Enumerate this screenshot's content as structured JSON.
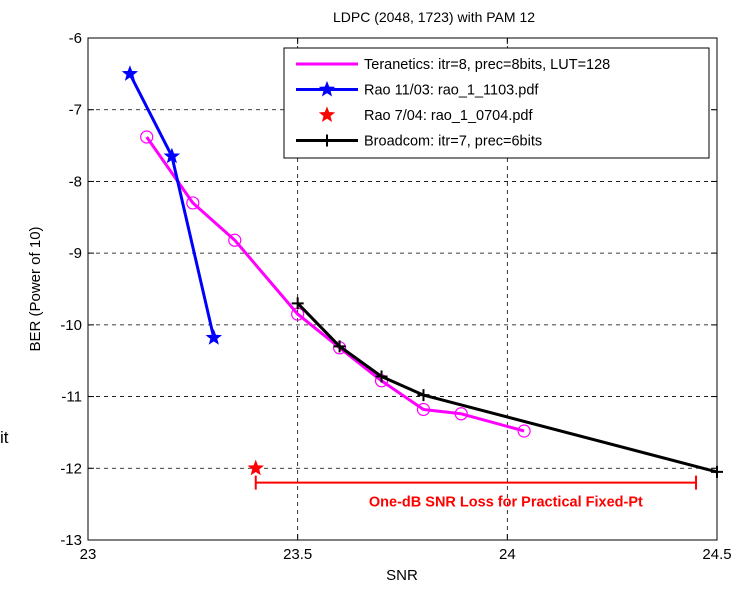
{
  "fragments": {
    "left_text": "it"
  },
  "chart_data": {
    "type": "line",
    "title": "LDPC (2048, 1723) with PAM 12",
    "xlabel": "SNR",
    "ylabel": "BER (Power of 10)",
    "xlim": [
      23,
      24.5
    ],
    "ylim": [
      -13,
      -6
    ],
    "x_ticks": [
      "23",
      "23.5",
      "24",
      "24.5"
    ],
    "y_ticks": [
      "-6",
      "-7",
      "-8",
      "-9",
      "-10",
      "-11",
      "-12",
      "-13"
    ],
    "grid": true,
    "legend_position": "top-right",
    "series": [
      {
        "name": "Teranetics: itr=8, prec=8bits, LUT=128",
        "color": "#ff00ff",
        "marker": "circle-open",
        "x": [
          23.14,
          23.25,
          23.35,
          23.5,
          23.6,
          23.7,
          23.8,
          23.89,
          24.04
        ],
        "y": [
          -7.38,
          -8.3,
          -8.82,
          -9.85,
          -10.32,
          -10.78,
          -11.18,
          -11.24,
          -11.48
        ]
      },
      {
        "name": "Rao 11/03: rao_1_1103.pdf",
        "color": "#0000ff",
        "marker": "star",
        "x": [
          23.1,
          23.2,
          23.3
        ],
        "y": [
          -6.5,
          -7.65,
          -10.18
        ]
      },
      {
        "name": "Rao 7/04: rao_1_0704.pdf",
        "color": "#ff0000",
        "marker": "star",
        "x": [
          23.4
        ],
        "y": [
          -12.0
        ]
      },
      {
        "name": "Broadcom: itr=7, prec=6bits",
        "color": "#000000",
        "marker": "plus",
        "x": [
          23.5,
          23.6,
          23.7,
          23.8,
          24.5
        ],
        "y": [
          -9.7,
          -10.3,
          -10.72,
          -10.98,
          -12.05
        ]
      }
    ],
    "annotation": {
      "text": "One-dB SNR Loss for Practical Fixed-Pt",
      "x_start": 23.4,
      "x_end": 24.45,
      "y": -12.2,
      "color": "#ff0000"
    }
  }
}
